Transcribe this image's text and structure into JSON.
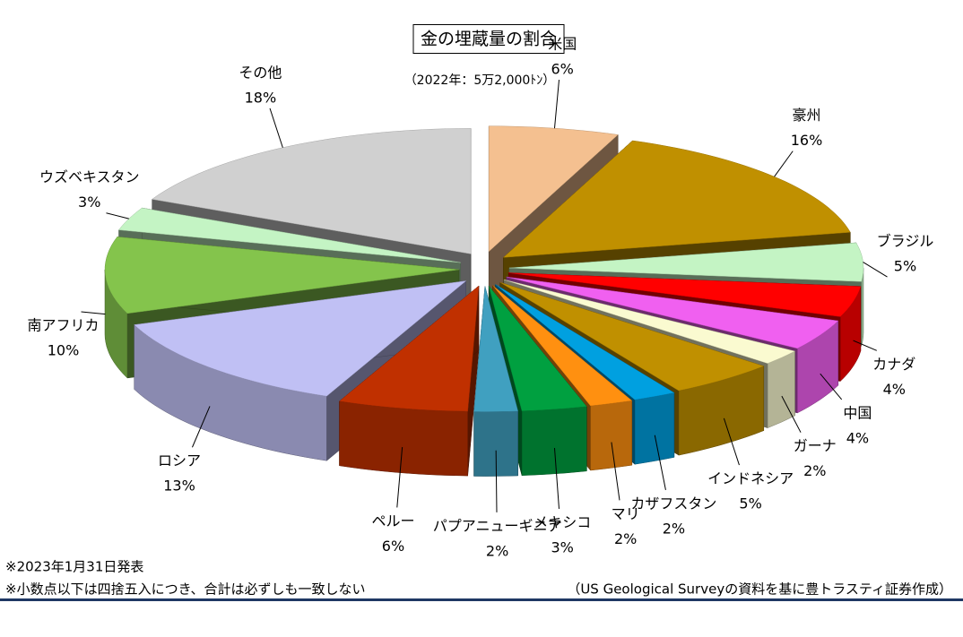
{
  "chart_data": {
    "type": "pie3d",
    "title": "金の埋蔵量の割合",
    "subtitle": "（2022年：5万2,000ﾄﾝ）",
    "categories": [
      "米国",
      "豪州",
      "ブラジル",
      "カナダ",
      "中国",
      "ガーナ",
      "インドネシア",
      "カザフスタン",
      "マリ",
      "メキシコ",
      "パプアニューギニア",
      "ペルー",
      "ロシア",
      "南アフリカ",
      "ウズベキスタン",
      "その他"
    ],
    "values": [
      6,
      16,
      5,
      4,
      4,
      2,
      5,
      2,
      2,
      3,
      2,
      6,
      13,
      10,
      3,
      18
    ],
    "value_labels": [
      "6%",
      "16%",
      "5%",
      "4%",
      "4%",
      "2%",
      "5%",
      "2%",
      "2%",
      "3%",
      "2%",
      "6%",
      "13%",
      "10%",
      "3%",
      "18%"
    ],
    "colors": [
      "#f4c090",
      "#c09000",
      "#c4f4c4",
      "#ff0000",
      "#f060f0",
      "#fafad0",
      "#c09000",
      "#00a0e0",
      "#ff9010",
      "#00a040",
      "#40a0c0",
      "#c03000",
      "#c0c0f4",
      "#84c44c",
      "#c4f4c4",
      "#d0d0d0"
    ],
    "notes": [
      "※2023年1月31日発表",
      "※小数点以下は四捨五入につき、合計は必ずしも一致しない"
    ],
    "source": "（US Geological Surveyの資料を基に豊トラスティ証券作成）"
  }
}
